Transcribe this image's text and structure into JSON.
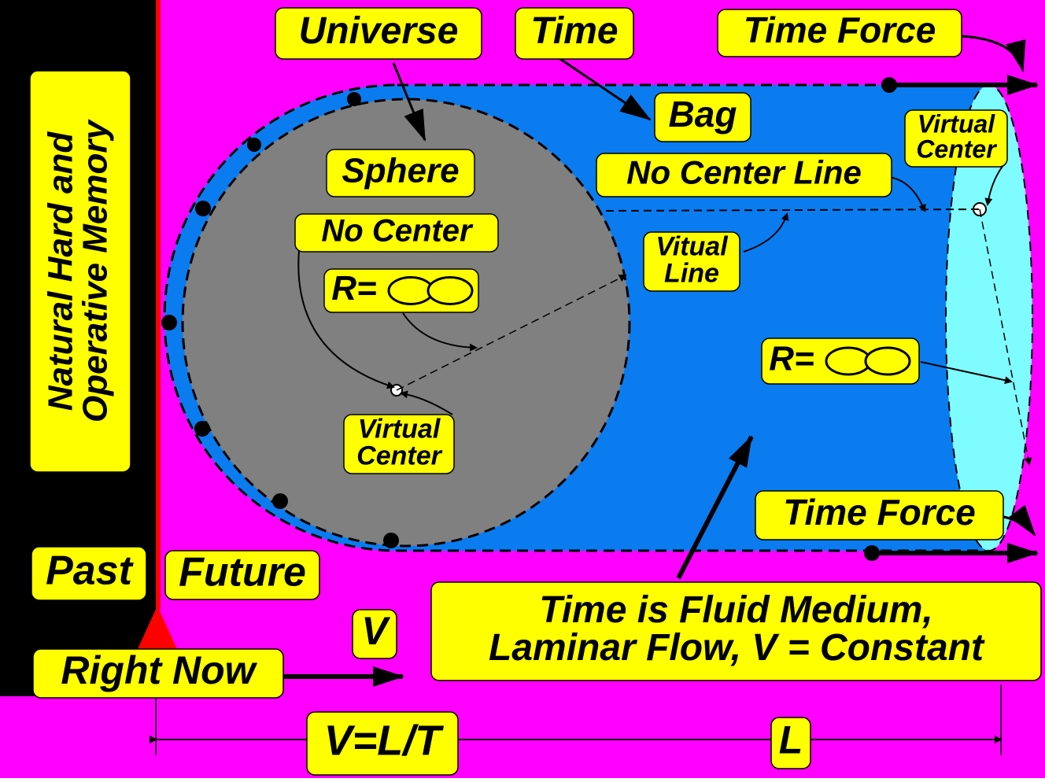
{
  "labels": {
    "universe": "Universe",
    "time": "Time",
    "time_force_top": "Time Force",
    "bag": "Bag",
    "sphere": "Sphere",
    "no_center_line": "No Center Line",
    "virtual_center_right": [
      "Virtual",
      "Center"
    ],
    "no_center": "No Center",
    "radius_sphere": "R=",
    "vitual_line": [
      "Vitual",
      "Line"
    ],
    "virtual_center_sphere": [
      "Virtual",
      "Center"
    ],
    "radius_right": "R=",
    "time_force_bottom": "Time Force",
    "memory": [
      "Natural Hard and",
      "Operative Memory"
    ],
    "past": "Past",
    "future": "Future",
    "v": "V",
    "right_now": "Right Now",
    "fluid": [
      "Time is Fluid Medium,",
      "Laminar Flow, V = Constant"
    ],
    "formula": "V=L/T",
    "length": "L"
  }
}
